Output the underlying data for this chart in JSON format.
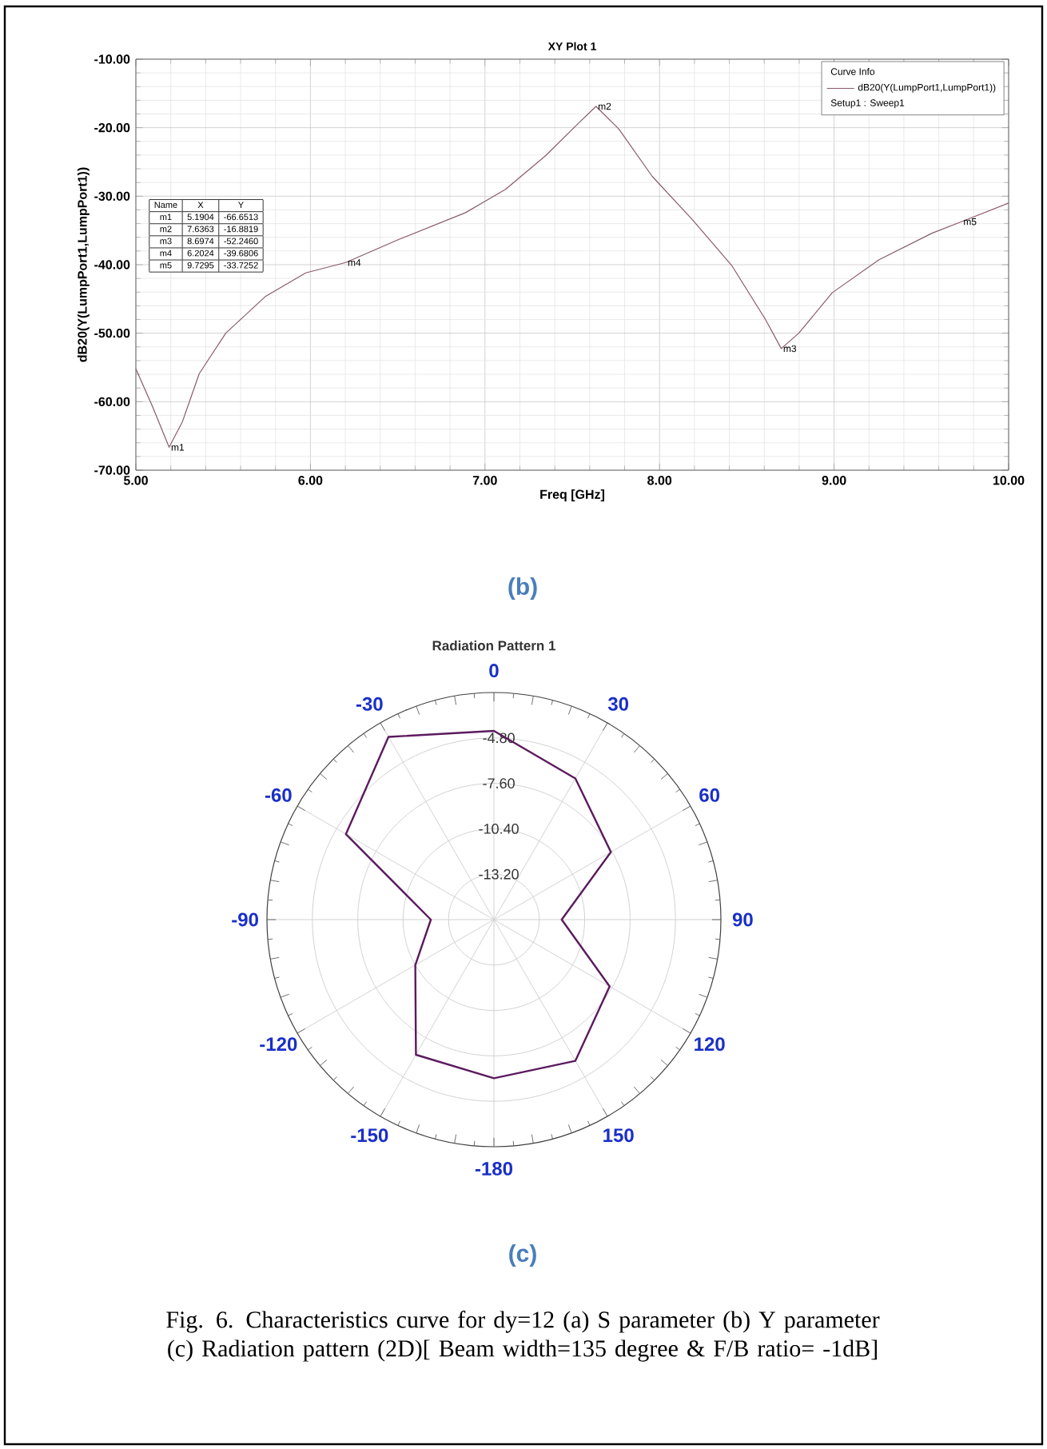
{
  "chart_data": [
    {
      "type": "line",
      "title": "XY Plot 1",
      "xlabel": "Freq [GHz]",
      "ylabel": "dB20(Y(LumpPort1,LumpPort1))",
      "legend_title": "Curve Info",
      "x": [
        5.0,
        5.095,
        5.1904,
        5.267,
        5.363,
        5.515,
        5.744,
        5.973,
        6.2024,
        6.508,
        6.889,
        7.118,
        7.347,
        7.538,
        7.6363,
        7.767,
        7.958,
        8.187,
        8.416,
        8.607,
        8.6974,
        8.798,
        8.989,
        9.256,
        9.561,
        9.7295,
        10.0
      ],
      "series": [
        {
          "name": "dB20(Y(LumpPort1,LumpPort1))",
          "color": "#8a5a6a",
          "values": [
            -55.2,
            -60.7,
            -66.6513,
            -62.9,
            -55.9,
            -50.0,
            -44.6,
            -41.2,
            -39.6806,
            -36.3,
            -32.4,
            -29.0,
            -24.1,
            -19.3,
            -16.8819,
            -20.2,
            -27.1,
            -33.4,
            -40.2,
            -48.0,
            -52.246,
            -50.0,
            -44.1,
            -39.3,
            -35.4,
            -33.7252,
            -31.0
          ]
        }
      ],
      "xlim": [
        5,
        10
      ],
      "ylim": [
        -70,
        -10
      ],
      "xticks": [
        {
          "value": 5,
          "label": "5.00"
        },
        {
          "value": 6,
          "label": "6.00"
        },
        {
          "value": 7,
          "label": "7.00"
        },
        {
          "value": 8,
          "label": "8.00"
        },
        {
          "value": 9,
          "label": "9.00"
        },
        {
          "value": 10,
          "label": "10.00"
        }
      ],
      "yticks": [
        {
          "value": -70,
          "label": "-70.00"
        },
        {
          "value": -60,
          "label": "-60.00"
        },
        {
          "value": -50,
          "label": "-50.00"
        },
        {
          "value": -40,
          "label": "-40.00"
        },
        {
          "value": -30,
          "label": "-30.00"
        },
        {
          "value": -20,
          "label": "-20.00"
        },
        {
          "value": -10,
          "label": "-10.00"
        }
      ],
      "grid": true,
      "legend": "top right",
      "annotations": [
        {
          "text": "m1",
          "x": 5.1904,
          "y": -66.6513
        },
        {
          "text": "m2",
          "x": 7.6363,
          "y": -16.8819
        },
        {
          "text": "m3",
          "x": 8.6974,
          "y": -52.246
        },
        {
          "text": "m4",
          "x": 6.2024,
          "y": -39.6806
        },
        {
          "text": "m5",
          "x": 9.7295,
          "y": -33.7252
        },
        "Name",
        "X",
        "Y",
        "m1",
        "5.1904",
        "-66.6513",
        "m2",
        "7.6363",
        "-16.8819",
        "m3",
        "8.6974",
        "-52.2460",
        "m4",
        "6.2024",
        "-39.6806",
        "m5",
        "9.7295",
        "-33.7252",
        "Setup1 : Sweep1",
        "(b)"
      ]
    },
    {
      "type": "radar",
      "title": "Radiation Pattern 1",
      "categories": [
        "0",
        "30",
        "60",
        "90",
        "120",
        "150",
        "-180",
        "-150",
        "-120",
        "-90",
        "-60",
        "-30"
      ],
      "series": [
        {
          "color": "#5b1a5e",
          "values": [
            -4.37,
            -5.95,
            -7.67,
            -11.82,
            -7.76,
            -5.95,
            -6.22,
            -6.38,
            -10.4,
            -12.11,
            -5.46,
            -2.99
          ]
        }
      ],
      "ylim": [
        -16,
        -2
      ],
      "yticks": [
        {
          "value": -13.2,
          "label": "-13.20"
        },
        {
          "value": -10.4,
          "label": "-10.40"
        },
        {
          "value": -7.6,
          "label": "-7.60"
        },
        {
          "value": -4.8,
          "label": "-4.80"
        }
      ],
      "grid": true,
      "annotations": [
        "(c)",
        "Fig. 6. Characteristics curve for dy=12  (a) S parameter (b) Y parameter (c) Radiation pattern (2D)[ Beam width=135 degree & F/B ratio=  -1dB]"
      ]
    }
  ]
}
